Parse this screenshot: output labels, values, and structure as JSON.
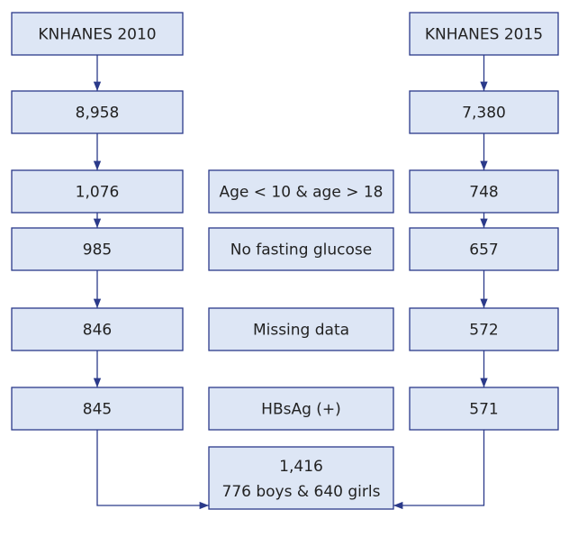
{
  "left": [
    "KNHANES 2010",
    "8,958",
    "1,076",
    "985",
    "846",
    "845"
  ],
  "exclusions": [
    "Age < 10 & age > 18",
    "No fasting glucose",
    "Missing data",
    "HBsAg (+)"
  ],
  "right": [
    "KNHANES 2015",
    "7,380",
    "748",
    "657",
    "572",
    "571"
  ],
  "total": {
    "count": "1,416",
    "breakdown": "776 boys & 640 girls"
  }
}
